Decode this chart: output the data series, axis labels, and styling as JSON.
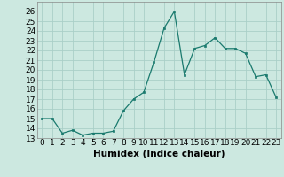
{
  "x": [
    0,
    1,
    2,
    3,
    4,
    5,
    6,
    7,
    8,
    9,
    10,
    11,
    12,
    13,
    14,
    15,
    16,
    17,
    18,
    19,
    20,
    21,
    22,
    23
  ],
  "y": [
    15,
    15,
    13.5,
    13.8,
    13.3,
    13.5,
    13.5,
    13.7,
    15.8,
    17.0,
    17.7,
    20.8,
    24.3,
    26.0,
    19.5,
    22.2,
    22.5,
    23.3,
    22.2,
    22.2,
    21.7,
    19.3,
    19.5,
    17.2
  ],
  "line_color": "#1a7a6e",
  "marker_color": "#1a7a6e",
  "bg_color": "#cce8e0",
  "grid_color": "#aacfc8",
  "xlabel": "Humidex (Indice chaleur)",
  "xlim": [
    -0.5,
    23.5
  ],
  "ylim": [
    13,
    27
  ],
  "yticks": [
    13,
    14,
    15,
    16,
    17,
    18,
    19,
    20,
    21,
    22,
    23,
    24,
    25,
    26
  ],
  "xtick_labels": [
    "0",
    "1",
    "2",
    "3",
    "4",
    "5",
    "6",
    "7",
    "8",
    "9",
    "10",
    "11",
    "12",
    "13",
    "14",
    "15",
    "16",
    "17",
    "18",
    "19",
    "20",
    "21",
    "22",
    "23"
  ],
  "tick_fontsize": 6.5,
  "xlabel_fontsize": 7.5
}
